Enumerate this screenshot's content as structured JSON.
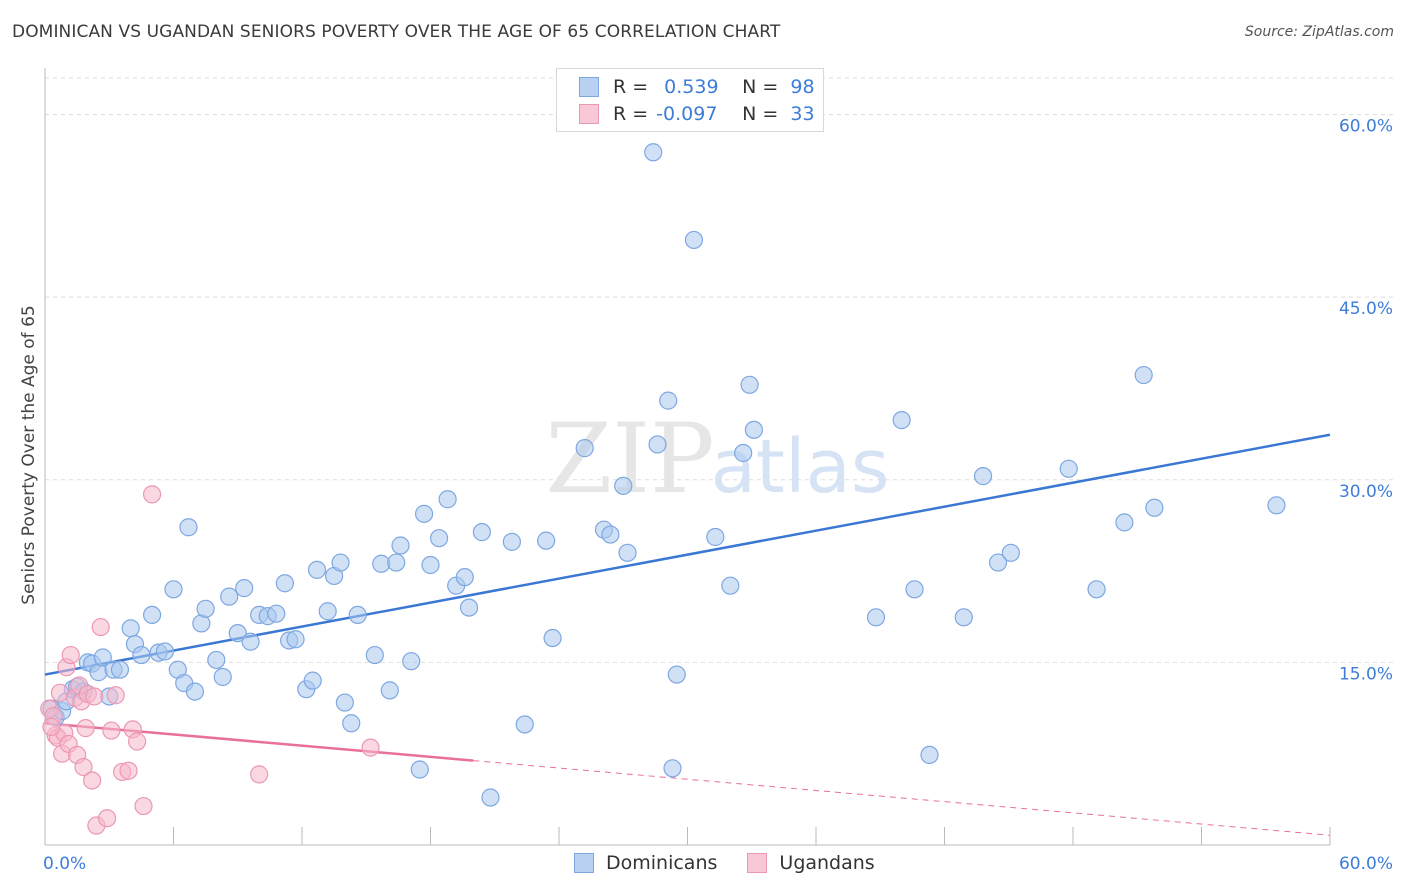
{
  "title": "DOMINICAN VS UGANDAN SENIORS POVERTY OVER THE AGE OF 65 CORRELATION CHART",
  "source": "Source: ZipAtlas.com",
  "watermark": {
    "zip": "ZIP",
    "atlas": "atlas"
  },
  "colors": {
    "blue": "#3a78d4",
    "blue_fill": "#aac8ef",
    "pink": "#e8709a",
    "pink_fill": "#f5b8cb",
    "axis_text": "#3d7dd8",
    "grid": "#dddddd"
  },
  "legend": {
    "rows": [
      {
        "r_label": "R =",
        "r_value": "0.539",
        "n_label": "N =",
        "n_value": "98"
      },
      {
        "r_label": "R =",
        "r_value": "-0.097",
        "n_label": "N =",
        "n_value": "33"
      }
    ]
  },
  "bottom_legend": {
    "series1": "Dominicans",
    "series2": "Ugandans"
  },
  "chart_data": {
    "type": "scatter",
    "title": "DOMINICAN VS UGANDAN SENIORS POVERTY OVER THE AGE OF 65 CORRELATION CHART",
    "xlabel": "",
    "ylabel": "Seniors Poverty Over the Age of 65",
    "xlim": [
      0,
      60
    ],
    "ylim": [
      0,
      63
    ],
    "x_tick_labels": [
      "0.0%",
      "60.0%"
    ],
    "y_ticks": [
      15,
      30,
      45,
      60
    ],
    "y_tick_labels": [
      "15.0%",
      "30.0%",
      "45.0%",
      "60.0%"
    ],
    "series": [
      {
        "name": "Dominicans",
        "trend": {
          "x": [
            0,
            60
          ],
          "y": [
            14.0,
            33.7
          ],
          "dashed_after": null
        },
        "points": [
          [
            0.3,
            11.2
          ],
          [
            0.5,
            10.5
          ],
          [
            0.8,
            11.0
          ],
          [
            1.0,
            11.8
          ],
          [
            1.3,
            12.8
          ],
          [
            1.5,
            13.0
          ],
          [
            1.8,
            12.6
          ],
          [
            2.0,
            15.0
          ],
          [
            2.2,
            14.9
          ],
          [
            2.5,
            14.2
          ],
          [
            2.7,
            15.4
          ],
          [
            3.0,
            12.2
          ],
          [
            3.2,
            14.4
          ],
          [
            3.5,
            14.4
          ],
          [
            4.0,
            17.8
          ],
          [
            4.2,
            16.5
          ],
          [
            4.5,
            15.6
          ],
          [
            5.0,
            18.9
          ],
          [
            5.3,
            15.8
          ],
          [
            5.6,
            15.9
          ],
          [
            6.0,
            21.0
          ],
          [
            6.2,
            14.4
          ],
          [
            6.5,
            13.3
          ],
          [
            6.7,
            26.1
          ],
          [
            7.0,
            12.6
          ],
          [
            7.3,
            18.2
          ],
          [
            7.5,
            19.4
          ],
          [
            8.0,
            15.2
          ],
          [
            8.3,
            13.8
          ],
          [
            8.6,
            20.4
          ],
          [
            9.0,
            17.4
          ],
          [
            9.3,
            21.1
          ],
          [
            9.6,
            16.7
          ],
          [
            10.0,
            18.9
          ],
          [
            10.4,
            18.8
          ],
          [
            10.8,
            19.0
          ],
          [
            11.2,
            21.5
          ],
          [
            11.4,
            16.8
          ],
          [
            11.7,
            16.9
          ],
          [
            12.2,
            12.8
          ],
          [
            12.5,
            13.5
          ],
          [
            12.7,
            22.6
          ],
          [
            13.2,
            19.2
          ],
          [
            13.5,
            22.1
          ],
          [
            13.8,
            23.2
          ],
          [
            14.0,
            11.7
          ],
          [
            14.3,
            10.0
          ],
          [
            14.6,
            18.9
          ],
          [
            15.4,
            15.6
          ],
          [
            15.7,
            23.1
          ],
          [
            16.1,
            12.7
          ],
          [
            16.4,
            23.2
          ],
          [
            16.6,
            24.6
          ],
          [
            17.1,
            15.1
          ],
          [
            17.5,
            6.2
          ],
          [
            17.7,
            27.2
          ],
          [
            18.0,
            23.0
          ],
          [
            18.4,
            25.2
          ],
          [
            18.8,
            28.4
          ],
          [
            19.2,
            21.3
          ],
          [
            19.6,
            22.0
          ],
          [
            19.8,
            19.5
          ],
          [
            20.4,
            25.7
          ],
          [
            20.8,
            3.9
          ],
          [
            21.8,
            24.9
          ],
          [
            22.4,
            9.9
          ],
          [
            23.4,
            25.0
          ],
          [
            23.7,
            17.0
          ],
          [
            25.2,
            32.6
          ],
          [
            26.1,
            25.9
          ],
          [
            26.4,
            25.5
          ],
          [
            27.0,
            29.5
          ],
          [
            27.2,
            24.0
          ],
          [
            28.4,
            56.9
          ],
          [
            28.6,
            32.9
          ],
          [
            29.1,
            36.5
          ],
          [
            29.3,
            6.3
          ],
          [
            29.5,
            14.0
          ],
          [
            30.3,
            49.7
          ],
          [
            31.3,
            25.3
          ],
          [
            32.0,
            21.3
          ],
          [
            32.6,
            32.2
          ],
          [
            32.9,
            37.8
          ],
          [
            33.1,
            34.1
          ],
          [
            38.8,
            18.7
          ],
          [
            40.0,
            34.9
          ],
          [
            40.6,
            21.0
          ],
          [
            41.3,
            7.4
          ],
          [
            42.9,
            18.7
          ],
          [
            43.8,
            30.3
          ],
          [
            44.5,
            23.2
          ],
          [
            45.1,
            24.0
          ],
          [
            47.8,
            30.9
          ],
          [
            49.1,
            21.0
          ],
          [
            50.4,
            26.5
          ],
          [
            51.3,
            38.6
          ],
          [
            51.8,
            27.7
          ],
          [
            57.5,
            27.9
          ]
        ]
      },
      {
        "name": "Ugandans",
        "trend": {
          "x": [
            0,
            60
          ],
          "y": [
            10.0,
            0.8
          ],
          "solid_until": 20
        },
        "points": [
          [
            0.2,
            11.2
          ],
          [
            0.4,
            10.6
          ],
          [
            0.5,
            9.0
          ],
          [
            0.6,
            8.8
          ],
          [
            0.7,
            12.5
          ],
          [
            0.8,
            7.5
          ],
          [
            0.9,
            9.2
          ],
          [
            1.0,
            14.6
          ],
          [
            1.1,
            8.3
          ],
          [
            1.2,
            15.6
          ],
          [
            1.4,
            12.1
          ],
          [
            1.5,
            7.4
          ],
          [
            1.6,
            13.1
          ],
          [
            1.7,
            11.8
          ],
          [
            1.8,
            6.4
          ],
          [
            1.9,
            9.6
          ],
          [
            2.0,
            12.4
          ],
          [
            2.2,
            5.3
          ],
          [
            2.4,
            1.6
          ],
          [
            2.6,
            17.9
          ],
          [
            2.9,
            2.2
          ],
          [
            3.1,
            9.4
          ],
          [
            3.3,
            12.3
          ],
          [
            3.6,
            6.0
          ],
          [
            3.9,
            6.1
          ],
          [
            4.1,
            9.5
          ],
          [
            4.3,
            8.5
          ],
          [
            4.6,
            3.2
          ],
          [
            5.0,
            28.8
          ],
          [
            10.0,
            5.8
          ],
          [
            15.2,
            8.0
          ],
          [
            0.3,
            9.7
          ],
          [
            2.3,
            12.2
          ]
        ]
      }
    ]
  }
}
